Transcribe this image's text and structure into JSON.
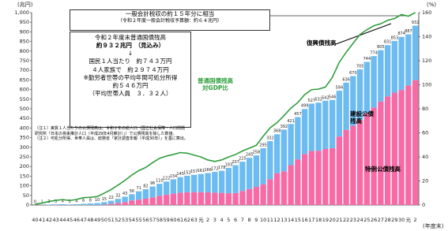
{
  "chart_data": {
    "type": "bar",
    "stacked": true,
    "categories": [
      "40",
      "41",
      "42",
      "43",
      "44",
      "45",
      "46",
      "47",
      "48",
      "49",
      "50",
      "51",
      "52",
      "53",
      "54",
      "55",
      "56",
      "57",
      "58",
      "59",
      "60",
      "61",
      "62",
      "63",
      "元",
      "2",
      "3",
      "4",
      "5",
      "6",
      "7",
      "8",
      "9",
      "10",
      "11",
      "12",
      "13",
      "14",
      "15",
      "16",
      "17",
      "18",
      "19",
      "20",
      "21",
      "22",
      "23",
      "24",
      "25",
      "26",
      "27",
      "28",
      "29",
      "30",
      "元",
      "2"
    ],
    "series": [
      {
        "name": "特例公債残高",
        "color": "#f76aa6",
        "type": "bar",
        "values": [
          0,
          0,
          0,
          0,
          0,
          0,
          0,
          0,
          0,
          0,
          2,
          6,
          10,
          15,
          23,
          28,
          33,
          40,
          48,
          54,
          59,
          64,
          66,
          67,
          67,
          66,
          64,
          63,
          61,
          62,
          73,
          83,
          94,
          108,
          134,
          165,
          175,
          207,
          237,
          265,
          281,
          282,
          291,
          295,
          356,
          390,
          412,
          443,
          477,
          506,
          538,
          564,
          584,
          598,
          622,
          649
        ]
      },
      {
        "name": "建設公債\n残高",
        "color": "#6cbcf2",
        "type": "bar",
        "values": [
          0,
          1,
          2,
          3,
          4,
          3,
          4,
          6,
          8,
          10,
          13,
          16,
          22,
          28,
          33,
          43,
          49,
          56,
          62,
          68,
          75,
          81,
          86,
          90,
          94,
          100,
          108,
          115,
          132,
          145,
          152,
          162,
          164,
          187,
          198,
          203,
          217,
          214,
          220,
          234,
          246,
          250,
          251,
          251,
          238,
          246,
          258,
          262,
          267,
          268,
          267,
          267,
          269,
          276,
          265,
          283
        ]
      },
      {
        "name": "普通国債残高\n対GDP比",
        "color": "#2f9e3c",
        "type": "line",
        "axis": "y2",
        "values": [
          0.6,
          1.6,
          2.9,
          3.8,
          4.5,
          3.7,
          4.6,
          6.1,
          6.4,
          7.0,
          9.8,
          12.8,
          16.5,
          20.5,
          24.9,
          28.6,
          31.2,
          35.2,
          38.8,
          40.7,
          42.0,
          43.6,
          43.1,
          41.5,
          39.9,
          37.4,
          36.2,
          37.5,
          39.9,
          42.0,
          44.9,
          47.3,
          49.6,
          57.2,
          64.2,
          68.5,
          74.3,
          80.5,
          85.2,
          91.8,
          95.9,
          96.4,
          98.1,
          106.2,
          118.7,
          127.0,
          134.5,
          141.8,
          145.8,
          149.1,
          150.7,
          153.6,
          155.1,
          158.4,
          157.0,
          160.0
        ]
      }
    ],
    "total_labels": [
      0,
      1,
      2,
      3,
      4,
      3,
      4,
      6,
      8,
      10,
      15,
      22,
      32,
      43,
      56,
      71,
      82,
      96,
      110,
      122,
      134,
      145,
      152,
      157,
      161,
      166,
      172,
      178,
      193,
      207,
      225,
      245,
      258,
      295,
      332,
      368,
      392,
      421,
      457,
      499,
      527,
      532,
      542,
      546,
      594,
      636,
      670,
      705,
      744,
      774,
      805,
      831,
      853,
      874,
      887,
      932
    ],
    "ylim": [
      0,
      1000
    ],
    "yticks": [
      0,
      50,
      100,
      150,
      200,
      250,
      300,
      350,
      400,
      450,
      500,
      550,
      600,
      650,
      700,
      750,
      800,
      850,
      900,
      950,
      {
        "value": 1000,
        "label": "1,000"
      }
    ],
    "y2lim": [
      0,
      160
    ],
    "y2ticks": [
      0,
      20,
      40,
      60,
      80,
      100,
      120,
      140,
      160
    ],
    "grid": false,
    "y_unit": "(兆円)",
    "y2_unit": "(%)",
    "x_unit": "(年度末)",
    "annotations": {
      "tax_years": "一般会計税収の約１５年分に相当",
      "tax_note": "（令和２年度一般会計税収予算額：約６４兆円）",
      "summary": [
        "令和２年度末普通国債残高",
        "約９３２兆円　（見込み）",
        "↓",
        "国民１人当たり　約７４３万円",
        "４人家族で　約２９７４万円",
        "※勤労者世帯の平均年間可処分所得",
        "約５４６万円",
        "（平均世帯人員　３．３２人）"
      ],
      "notes": [
        "（注１）実質１人当たりの公債残高は、令和２年の総人口（国立社会保障・人口問題",
        "研究所『日本の将来推計人口（平成29年4月推計）』）で公債残高を除した数値。",
        "（注２）可処分所得、世帯人員は、総務省『家計調査年報（平成30年）』を基に算出。"
      ],
      "reconstruction": "復興債残高"
    }
  }
}
